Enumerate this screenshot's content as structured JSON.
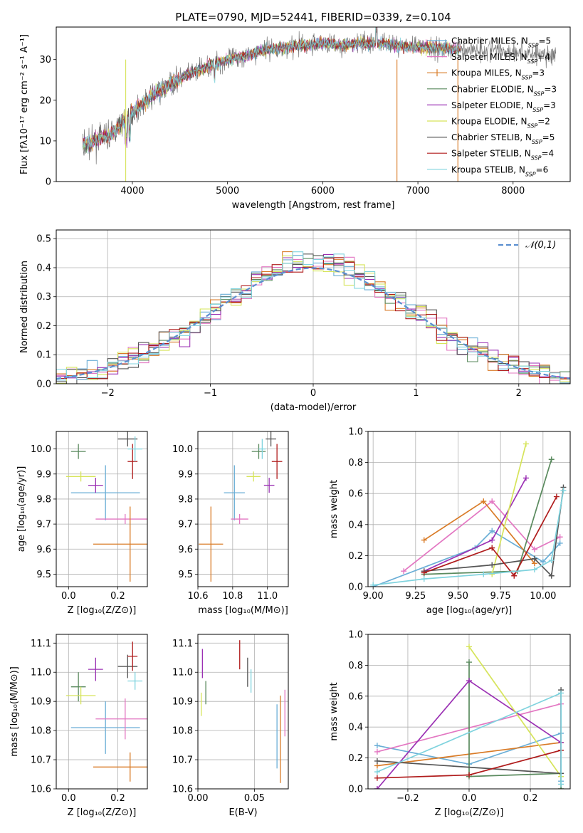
{
  "title": "PLATE=0790, MJD=52441, FIBERID=0339, z=0.104",
  "legend_colors": [
    "#6aaed6",
    "#e377c2",
    "#d97b27",
    "#5a8a5e",
    "#9b31b4",
    "#d6e45a",
    "#555555",
    "#b01c1c",
    "#7fd3de"
  ],
  "chart_data": [
    {
      "id": "spectrum",
      "type": "line",
      "title": "PLATE=0790, MJD=52441, FIBERID=0339, z=0.104",
      "xlabel": "wavelength [Angstrom, rest frame]",
      "ylabel": "Flux [fλ10⁻¹⁷ erg cm⁻² s⁻¹ A⁻¹]",
      "xlim": [
        3200,
        8600
      ],
      "ylim": [
        0,
        38
      ],
      "xticks": [
        4000,
        5000,
        6000,
        7000,
        8000
      ],
      "yticks": [
        0,
        10,
        20,
        30
      ],
      "grid": false,
      "legend_position": "right",
      "series": [
        {
          "name": "Chabrier MILES, N_SSP=5",
          "label_main": "Chabrier MILES, N",
          "label_sub": "SSP",
          "label_end": "=5",
          "color": "#6aaed6"
        },
        {
          "name": "Salpeter MILES, N_SSP=4",
          "label_main": "Salpeter MILES, N",
          "label_sub": "SSP",
          "label_end": "=4",
          "color": "#e377c2"
        },
        {
          "name": "Kroupa MILES, N_SSP=3",
          "label_main": "Kroupa MILES, N",
          "label_sub": "SSP",
          "label_end": "=3",
          "color": "#d97b27"
        },
        {
          "name": "Chabrier ELODIE, N_SSP=3",
          "label_main": "Chabrier ELODIE, N",
          "label_sub": "SSP",
          "label_end": "=3",
          "color": "#5a8a5e"
        },
        {
          "name": "Salpeter ELODIE, N_SSP=3",
          "label_main": "Salpeter ELODIE, N",
          "label_sub": "SSP",
          "label_end": "=3",
          "color": "#9b31b4"
        },
        {
          "name": "Kroupa ELODIE, N_SSP=2",
          "label_main": "Kroupa ELODIE, N",
          "label_sub": "SSP",
          "label_end": "=2",
          "color": "#d6e45a"
        },
        {
          "name": "Chabrier STELIB, N_SSP=5",
          "label_main": "Chabrier STELIB, N",
          "label_sub": "SSP",
          "label_end": "=5",
          "color": "#555555"
        },
        {
          "name": "Salpeter STELIB, N_SSP=4",
          "label_main": "Salpeter STELIB, N",
          "label_sub": "SSP",
          "label_end": "=4",
          "color": "#b01c1c"
        },
        {
          "name": "Kroupa STELIB, N_SSP=6",
          "label_main": "Kroupa STELIB, N",
          "label_sub": "SSP",
          "label_end": "=6",
          "color": "#7fd3de"
        }
      ],
      "continuum": {
        "x": [
          3500,
          3600,
          3800,
          3950,
          4050,
          4200,
          4400,
          4600,
          4800,
          5000,
          5200,
          5400,
          5600,
          5800,
          6000,
          6200,
          6400,
          6600,
          6800,
          7000,
          7200,
          7400,
          7600,
          7800,
          8000,
          8200,
          8400
        ],
        "y": [
          9,
          10,
          12,
          16,
          18,
          21,
          24,
          26.5,
          28.5,
          30,
          31,
          32.5,
          33,
          33.5,
          34,
          33.5,
          34,
          34,
          33.5,
          33,
          33,
          32.5,
          32.5,
          32.5,
          32,
          31.5,
          31
        ]
      },
      "drops": [
        {
          "x": 6780,
          "color": "#d97b27"
        },
        {
          "x": 7420,
          "color": "#d97b27"
        },
        {
          "x": 3930,
          "color": "#d6e45a"
        }
      ]
    },
    {
      "id": "residuals",
      "type": "histogram",
      "xlabel": "(data-model)/error",
      "ylabel": "Normed distribution",
      "xlim": [
        -2.5,
        2.5
      ],
      "ylim": [
        0,
        0.53
      ],
      "xticks": [
        -2,
        -1,
        0,
        1,
        2
      ],
      "yticks": [
        0.0,
        0.1,
        0.2,
        0.3,
        0.4,
        0.5
      ],
      "grid": true,
      "legend_position": "top-right",
      "reference_curve": {
        "label": "𝒩(0,1)",
        "color": "#5b8fd0"
      },
      "bin_width": 0.1,
      "peak_bin_values": [
        0.5,
        0.48,
        0.46,
        0.45,
        0.44,
        0.43,
        0.42,
        0.41,
        0.4
      ]
    },
    {
      "id": "age_vs_Z",
      "type": "errorbar",
      "xlabel": "Z [log₁₀(Z/Z⊙)]",
      "ylabel": "age  [log₁₀(age/yr)]",
      "xlim": [
        -0.05,
        0.32
      ],
      "ylim": [
        9.45,
        10.07
      ],
      "xticks": [
        0.0,
        0.2
      ],
      "yticks": [
        9.5,
        9.6,
        9.7,
        9.8,
        9.9,
        10.0
      ],
      "grid": true,
      "points": [
        {
          "x": 0.15,
          "y": 9.825,
          "xerr": 0.14,
          "yerr": 0.11,
          "color": "#6aaed6"
        },
        {
          "x": 0.23,
          "y": 9.72,
          "xerr": 0.12,
          "yerr": 0.02,
          "color": "#e377c2"
        },
        {
          "x": 0.25,
          "y": 9.62,
          "xerr": 0.15,
          "yerr": 0.15,
          "color": "#d97b27"
        },
        {
          "x": 0.04,
          "y": 9.99,
          "xerr": 0.03,
          "yerr": 0.03,
          "color": "#5a8a5e"
        },
        {
          "x": 0.11,
          "y": 9.855,
          "xerr": 0.03,
          "yerr": 0.03,
          "color": "#9b31b4"
        },
        {
          "x": 0.05,
          "y": 9.89,
          "xerr": 0.06,
          "yerr": 0.02,
          "color": "#d6e45a"
        },
        {
          "x": 0.24,
          "y": 10.04,
          "xerr": 0.04,
          "yerr": 0.03,
          "color": "#555555"
        },
        {
          "x": 0.26,
          "y": 9.95,
          "xerr": 0.02,
          "yerr": 0.07,
          "color": "#b01c1c"
        },
        {
          "x": 0.27,
          "y": 10.0,
          "xerr": 0.03,
          "yerr": 0.05,
          "color": "#7fd3de"
        }
      ]
    },
    {
      "id": "age_vs_mass",
      "type": "errorbar",
      "xlabel": "mass [log₁₀(M/M⊙)]",
      "ylabel": "",
      "xlim": [
        10.6,
        11.12
      ],
      "ylim": [
        9.45,
        10.07
      ],
      "xticks": [
        10.6,
        10.8,
        11.0
      ],
      "yticks": [
        9.5,
        9.6,
        9.7,
        9.8,
        9.9,
        10.0
      ],
      "grid": true,
      "points": [
        {
          "x": 10.81,
          "y": 9.825,
          "xerr": 0.06,
          "yerr": 0.11,
          "color": "#6aaed6"
        },
        {
          "x": 10.84,
          "y": 9.72,
          "xerr": 0.05,
          "yerr": 0.02,
          "color": "#e377c2"
        },
        {
          "x": 10.675,
          "y": 9.62,
          "xerr": 0.07,
          "yerr": 0.15,
          "color": "#d97b27"
        },
        {
          "x": 10.95,
          "y": 9.99,
          "xerr": 0.04,
          "yerr": 0.03,
          "color": "#5a8a5e"
        },
        {
          "x": 11.01,
          "y": 9.855,
          "xerr": 0.03,
          "yerr": 0.03,
          "color": "#9b31b4"
        },
        {
          "x": 10.92,
          "y": 9.89,
          "xerr": 0.04,
          "yerr": 0.02,
          "color": "#d6e45a"
        },
        {
          "x": 11.02,
          "y": 10.04,
          "xerr": 0.03,
          "yerr": 0.03,
          "color": "#555555"
        },
        {
          "x": 11.055,
          "y": 9.95,
          "xerr": 0.03,
          "yerr": 0.07,
          "color": "#b01c1c"
        },
        {
          "x": 10.97,
          "y": 10.0,
          "xerr": 0.02,
          "yerr": 0.04,
          "color": "#7fd3de"
        }
      ]
    },
    {
      "id": "weight_vs_age",
      "type": "line",
      "xlabel": "age  [log₁₀(age/yr)]",
      "ylabel": "mass weight",
      "xlim": [
        8.97,
        10.16
      ],
      "ylim": [
        0,
        1
      ],
      "xticks": [
        9.0,
        9.25,
        9.5,
        9.75,
        10.0
      ],
      "yticks": [
        0.0,
        0.2,
        0.4,
        0.6,
        0.8,
        1.0
      ],
      "grid": true,
      "series": [
        {
          "color": "#6aaed6",
          "x": [
            9.0,
            9.6,
            9.7,
            10.0,
            10.1
          ],
          "y": [
            0.0,
            0.25,
            0.36,
            0.16,
            0.28
          ]
        },
        {
          "color": "#e377c2",
          "x": [
            9.18,
            9.7,
            9.95,
            10.1
          ],
          "y": [
            0.1,
            0.55,
            0.24,
            0.32
          ]
        },
        {
          "color": "#d97b27",
          "x": [
            9.3,
            9.65,
            9.95
          ],
          "y": [
            0.3,
            0.55,
            0.15
          ]
        },
        {
          "color": "#5a8a5e",
          "x": [
            9.3,
            9.85,
            10.05
          ],
          "y": [
            0.08,
            0.1,
            0.82
          ]
        },
        {
          "color": "#9b31b4",
          "x": [
            9.3,
            9.7,
            9.9
          ],
          "y": [
            0.1,
            0.3,
            0.7
          ]
        },
        {
          "color": "#d6e45a",
          "x": [
            9.7,
            9.9
          ],
          "y": [
            0.08,
            0.92
          ]
        },
        {
          "color": "#555555",
          "x": [
            9.3,
            9.7,
            9.95,
            10.05,
            10.12
          ],
          "y": [
            0.1,
            0.14,
            0.18,
            0.07,
            0.64
          ]
        },
        {
          "color": "#b01c1c",
          "x": [
            9.3,
            9.7,
            9.83,
            10.08
          ],
          "y": [
            0.09,
            0.25,
            0.07,
            0.58
          ]
        },
        {
          "color": "#7fd3de",
          "x": [
            9.0,
            9.3,
            9.65,
            9.95,
            10.05,
            10.12
          ],
          "y": [
            0.01,
            0.05,
            0.08,
            0.11,
            0.17,
            0.62
          ]
        }
      ]
    },
    {
      "id": "mass_vs_Z",
      "type": "errorbar",
      "xlabel": "Z [log₁₀(Z/Z⊙)]",
      "ylabel": "mass [log₁₀(M/M⊙)]",
      "xlim": [
        -0.05,
        0.32
      ],
      "ylim": [
        10.6,
        11.13
      ],
      "xticks": [
        0.0,
        0.2
      ],
      "yticks": [
        10.6,
        10.7,
        10.8,
        10.9,
        11.0,
        11.1
      ],
      "grid": true,
      "points": [
        {
          "x": 0.15,
          "y": 10.81,
          "xerr": 0.14,
          "yerr": 0.09,
          "color": "#6aaed6"
        },
        {
          "x": 0.23,
          "y": 10.84,
          "xerr": 0.12,
          "yerr": 0.07,
          "color": "#e377c2"
        },
        {
          "x": 0.25,
          "y": 10.675,
          "xerr": 0.15,
          "yerr": 0.05,
          "color": "#d97b27"
        },
        {
          "x": 0.04,
          "y": 10.95,
          "xerr": 0.03,
          "yerr": 0.05,
          "color": "#5a8a5e"
        },
        {
          "x": 0.11,
          "y": 11.01,
          "xerr": 0.03,
          "yerr": 0.04,
          "color": "#9b31b4"
        },
        {
          "x": 0.05,
          "y": 10.92,
          "xerr": 0.06,
          "yerr": 0.03,
          "color": "#d6e45a"
        },
        {
          "x": 0.24,
          "y": 11.02,
          "xerr": 0.04,
          "yerr": 0.04,
          "color": "#555555"
        },
        {
          "x": 0.26,
          "y": 11.055,
          "xerr": 0.02,
          "yerr": 0.05,
          "color": "#b01c1c"
        },
        {
          "x": 0.27,
          "y": 10.97,
          "xerr": 0.03,
          "yerr": 0.03,
          "color": "#7fd3de"
        }
      ]
    },
    {
      "id": "mass_vs_ebv",
      "type": "errorbar",
      "xlabel": "E(B-V)",
      "ylabel": "",
      "xlim": [
        0.0,
        0.08
      ],
      "ylim": [
        10.6,
        11.13
      ],
      "xticks": [
        0.0,
        0.05
      ],
      "yticks": [
        10.6,
        10.7,
        10.8,
        10.9,
        11.0,
        11.1
      ],
      "grid": true,
      "points": [
        {
          "x": 0.07,
          "y": 10.78,
          "xerr": 0,
          "yerr": 0.11,
          "color": "#6aaed6"
        },
        {
          "x": 0.077,
          "y": 10.86,
          "xerr": 0,
          "yerr": 0.08,
          "color": "#e377c2"
        },
        {
          "x": 0.073,
          "y": 10.77,
          "xerr": 0,
          "yerr": 0.15,
          "color": "#d97b27"
        },
        {
          "x": 0.007,
          "y": 10.93,
          "xerr": 0,
          "yerr": 0.04,
          "color": "#5a8a5e"
        },
        {
          "x": 0.004,
          "y": 11.03,
          "xerr": 0,
          "yerr": 0.05,
          "color": "#9b31b4"
        },
        {
          "x": 0.003,
          "y": 10.89,
          "xerr": 0,
          "yerr": 0.04,
          "color": "#d6e45a"
        },
        {
          "x": 0.044,
          "y": 11.0,
          "xerr": 0,
          "yerr": 0.05,
          "color": "#555555"
        },
        {
          "x": 0.037,
          "y": 11.06,
          "xerr": 0,
          "yerr": 0.05,
          "color": "#b01c1c"
        },
        {
          "x": 0.047,
          "y": 10.97,
          "xerr": 0,
          "yerr": 0.04,
          "color": "#7fd3de"
        }
      ]
    },
    {
      "id": "weight_vs_Z",
      "type": "line",
      "xlabel": "Z [log₁₀(Z/Z⊙)]",
      "ylabel": "mass weight",
      "xlim": [
        -0.33,
        0.33
      ],
      "ylim": [
        0,
        1
      ],
      "xticks": [
        -0.2,
        0.0,
        0.2
      ],
      "yticks": [
        0.0,
        0.2,
        0.4,
        0.6,
        0.8,
        1.0
      ],
      "grid": true,
      "series": [
        {
          "color": "#6aaed6",
          "x": [
            -0.3,
            0.0,
            0.3,
            0.3
          ],
          "y": [
            0.28,
            0.16,
            0.36,
            0.05
          ]
        },
        {
          "color": "#e377c2",
          "x": [
            -0.3,
            0.3,
            0.3
          ],
          "y": [
            0.24,
            0.55,
            0.08
          ]
        },
        {
          "color": "#d97b27",
          "x": [
            -0.3,
            0.3
          ],
          "y": [
            0.15,
            0.3
          ]
        },
        {
          "color": "#5a8a5e",
          "x": [
            0.0,
            0.0,
            0.3,
            0.3
          ],
          "y": [
            0.82,
            0.08,
            0.1,
            0.0
          ]
        },
        {
          "color": "#9b31b4",
          "x": [
            -0.3,
            0.0,
            0.3
          ],
          "y": [
            0.0,
            0.7,
            0.3
          ]
        },
        {
          "color": "#d6e45a",
          "x": [
            0.0,
            0.3
          ],
          "y": [
            0.92,
            0.08
          ]
        },
        {
          "color": "#555555",
          "x": [
            -0.3,
            0.3,
            0.3
          ],
          "y": [
            0.18,
            0.1,
            0.64
          ]
        },
        {
          "color": "#b01c1c",
          "x": [
            -0.3,
            0.0,
            0.3
          ],
          "y": [
            0.07,
            0.09,
            0.25
          ]
        },
        {
          "color": "#7fd3de",
          "x": [
            -0.3,
            0.3,
            0.3
          ],
          "y": [
            0.11,
            0.62,
            0.03
          ]
        }
      ]
    }
  ]
}
